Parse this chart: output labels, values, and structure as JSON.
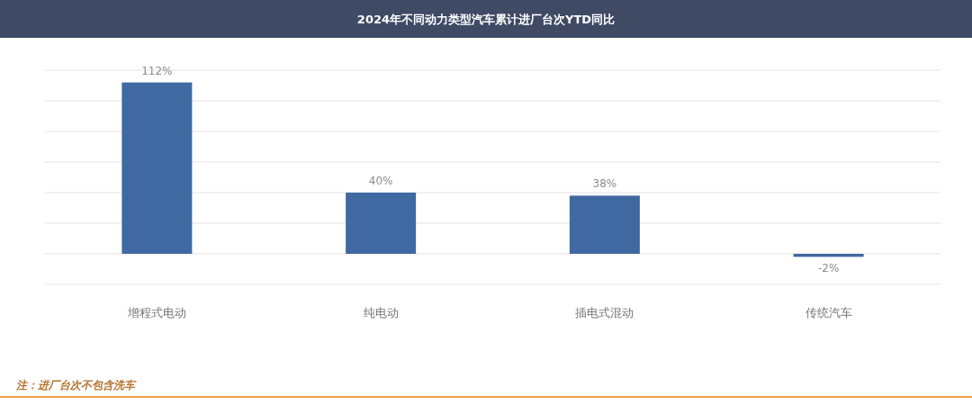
{
  "chart_data": {
    "type": "bar",
    "title": "2024年不同动力类型汽车累计进厂台次YTD同比",
    "categories": [
      "增程式电动",
      "纯电动",
      "插电式混动",
      "传统汽车"
    ],
    "values": [
      112,
      40,
      38,
      -2
    ],
    "value_labels": [
      "112%",
      "40%",
      "38%",
      "-2%"
    ],
    "color": "#4169a1",
    "ylim": [
      -20,
      120
    ],
    "yticks": [
      {
        "value": -20,
        "label": null
      },
      {
        "value": 0,
        "label": null
      },
      {
        "value": 20,
        "label": null
      },
      {
        "value": 40,
        "label": null
      },
      {
        "value": 60,
        "label": null
      },
      {
        "value": 80,
        "label": null
      },
      {
        "value": 100,
        "label": null
      },
      {
        "value": 120,
        "label": null
      }
    ],
    "tick_labels": "x",
    "grid": "y",
    "annotations": [
      "注：进厂台次不包含洗车"
    ]
  }
}
